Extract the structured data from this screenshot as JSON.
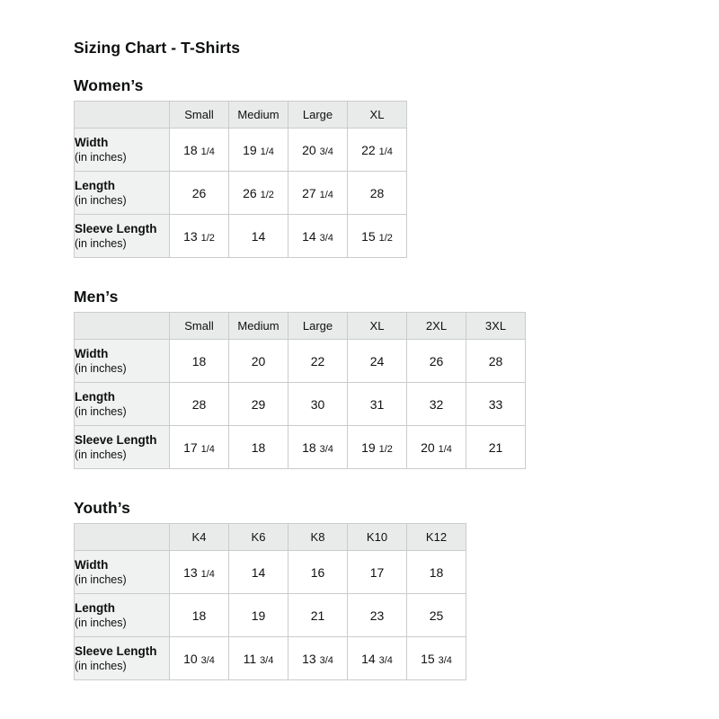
{
  "title": "Sizing Chart - T-Shirts",
  "colors": {
    "background": "#ffffff",
    "text": "#0f1111",
    "header_bg": "#e9eaea",
    "row_label_bg": "#f0f1f1",
    "border": "#cacbcc"
  },
  "tables": [
    {
      "section": "Women’s",
      "columns": [
        "Small",
        "Medium",
        "Large",
        "XL"
      ],
      "rows": [
        {
          "label": "Width",
          "sublabel": "(in inches)",
          "values": [
            "18 1/4",
            "19 1/4",
            "20 3/4",
            "22 1/4"
          ]
        },
        {
          "label": "Length",
          "sublabel": "(in inches)",
          "values": [
            "26",
            "26 1/2",
            "27 1/4",
            "28"
          ]
        },
        {
          "label": "Sleeve Length",
          "sublabel": "(in inches)",
          "values": [
            "13 1/2",
            "14",
            "14 3/4",
            "15 1/2"
          ]
        }
      ]
    },
    {
      "section": "Men’s",
      "columns": [
        "Small",
        "Medium",
        "Large",
        "XL",
        "2XL",
        "3XL"
      ],
      "rows": [
        {
          "label": "Width",
          "sublabel": "(in inches)",
          "values": [
            "18",
            "20",
            "22",
            "24",
            "26",
            "28"
          ]
        },
        {
          "label": "Length",
          "sublabel": "(in inches)",
          "values": [
            "28",
            "29",
            "30",
            "31",
            "32",
            "33"
          ]
        },
        {
          "label": "Sleeve Length",
          "sublabel": "(in inches)",
          "values": [
            "17 1/4",
            "18",
            "18 3/4",
            "19 1/2",
            "20 1/4",
            "21"
          ]
        }
      ]
    },
    {
      "section": "Youth’s",
      "columns": [
        "K4",
        "K6",
        "K8",
        "K10",
        "K12"
      ],
      "rows": [
        {
          "label": "Width",
          "sublabel": "(in inches)",
          "values": [
            "13 1/4",
            "14",
            "16",
            "17",
            "18"
          ]
        },
        {
          "label": "Length",
          "sublabel": "(in inches)",
          "values": [
            "18",
            "19",
            "21",
            "23",
            "25"
          ]
        },
        {
          "label": "Sleeve Length",
          "sublabel": "(in inches)",
          "values": [
            "10 3/4",
            "11 3/4",
            "13 3/4",
            "14 3/4",
            "15 3/4"
          ]
        }
      ]
    }
  ]
}
